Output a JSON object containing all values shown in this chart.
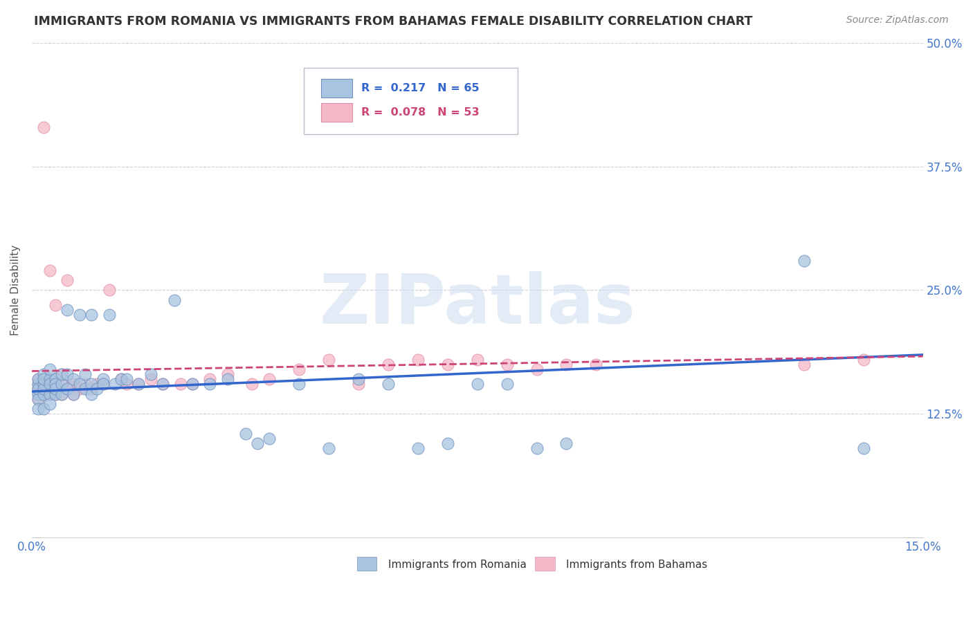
{
  "title": "IMMIGRANTS FROM ROMANIA VS IMMIGRANTS FROM BAHAMAS FEMALE DISABILITY CORRELATION CHART",
  "source": "Source: ZipAtlas.com",
  "ylabel": "Female Disability",
  "xlim": [
    0.0,
    0.15
  ],
  "ylim": [
    0.0,
    0.5
  ],
  "xticks": [
    0.0,
    0.05,
    0.1,
    0.15
  ],
  "xticklabels": [
    "0.0%",
    "",
    "",
    "15.0%"
  ],
  "yticks": [
    0.0,
    0.125,
    0.25,
    0.375,
    0.5
  ],
  "yticklabels": [
    "",
    "12.5%",
    "25.0%",
    "37.5%",
    "50.0%"
  ],
  "romania_R": 0.217,
  "romania_N": 65,
  "bahamas_R": 0.078,
  "bahamas_N": 53,
  "romania_color": "#a8c4e0",
  "bahamas_color": "#f4b8c8",
  "romania_line_color": "#3366cc",
  "bahamas_line_color": "#cc4477",
  "romania_x": [
    0.001,
    0.001,
    0.001,
    0.001,
    0.001,
    0.001,
    0.002,
    0.002,
    0.002,
    0.002,
    0.002,
    0.002,
    0.003,
    0.003,
    0.003,
    0.003,
    0.003,
    0.004,
    0.004,
    0.004,
    0.004,
    0.005,
    0.005,
    0.005,
    0.006,
    0.006,
    0.006,
    0.007,
    0.007,
    0.008,
    0.008,
    0.009,
    0.009,
    0.01,
    0.01,
    0.01,
    0.011,
    0.012,
    0.012,
    0.013,
    0.014,
    0.015,
    0.016,
    0.018,
    0.02,
    0.022,
    0.024,
    0.027,
    0.03,
    0.033,
    0.036,
    0.038,
    0.04,
    0.045,
    0.05,
    0.055,
    0.06,
    0.065,
    0.07,
    0.075,
    0.08,
    0.085,
    0.09,
    0.13,
    0.14
  ],
  "romania_y": [
    0.155,
    0.145,
    0.16,
    0.14,
    0.13,
    0.15,
    0.165,
    0.145,
    0.155,
    0.13,
    0.15,
    0.16,
    0.16,
    0.145,
    0.155,
    0.17,
    0.135,
    0.16,
    0.145,
    0.155,
    0.15,
    0.155,
    0.145,
    0.165,
    0.23,
    0.15,
    0.165,
    0.16,
    0.145,
    0.225,
    0.155,
    0.165,
    0.15,
    0.225,
    0.155,
    0.145,
    0.15,
    0.16,
    0.155,
    0.225,
    0.155,
    0.16,
    0.16,
    0.155,
    0.165,
    0.155,
    0.24,
    0.155,
    0.155,
    0.16,
    0.105,
    0.095,
    0.1,
    0.155,
    0.09,
    0.16,
    0.155,
    0.09,
    0.095,
    0.155,
    0.155,
    0.09,
    0.095,
    0.28,
    0.09
  ],
  "bahamas_x": [
    0.001,
    0.001,
    0.001,
    0.001,
    0.001,
    0.002,
    0.002,
    0.002,
    0.002,
    0.003,
    0.003,
    0.003,
    0.003,
    0.004,
    0.004,
    0.004,
    0.005,
    0.005,
    0.005,
    0.006,
    0.006,
    0.007,
    0.007,
    0.008,
    0.009,
    0.01,
    0.011,
    0.012,
    0.013,
    0.015,
    0.016,
    0.018,
    0.02,
    0.022,
    0.025,
    0.027,
    0.03,
    0.033,
    0.037,
    0.04,
    0.045,
    0.05,
    0.055,
    0.06,
    0.065,
    0.07,
    0.075,
    0.08,
    0.085,
    0.09,
    0.095,
    0.13,
    0.14
  ],
  "bahamas_y": [
    0.15,
    0.145,
    0.155,
    0.14,
    0.16,
    0.145,
    0.15,
    0.415,
    0.155,
    0.15,
    0.27,
    0.145,
    0.155,
    0.15,
    0.145,
    0.235,
    0.155,
    0.145,
    0.165,
    0.15,
    0.26,
    0.155,
    0.145,
    0.15,
    0.155,
    0.15,
    0.155,
    0.155,
    0.25,
    0.16,
    0.155,
    0.155,
    0.16,
    0.155,
    0.155,
    0.155,
    0.16,
    0.165,
    0.155,
    0.16,
    0.17,
    0.18,
    0.155,
    0.175,
    0.18,
    0.175,
    0.18,
    0.175,
    0.17,
    0.175,
    0.175,
    0.175,
    0.18
  ],
  "watermark": "ZIPatlas",
  "background_color": "#ffffff",
  "grid_color": "#ccccdd",
  "title_color": "#333333",
  "tick_label_color": "#4477cc"
}
